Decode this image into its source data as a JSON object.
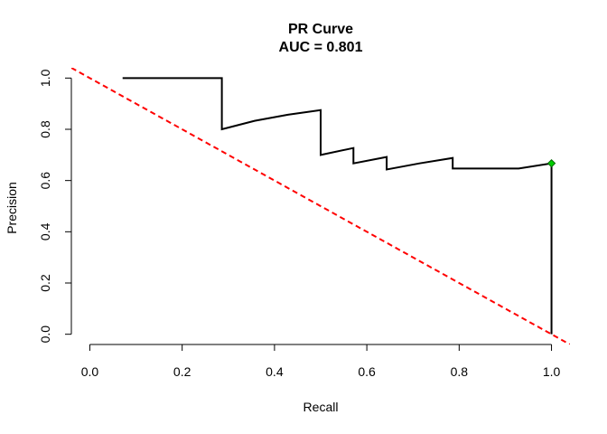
{
  "chart_data": {
    "type": "line",
    "title": "PR Curve",
    "subtitle": "AUC = 0.801",
    "xlabel": "Recall",
    "ylabel": "Precision",
    "xlim": [
      -0.04,
      1.04
    ],
    "ylim": [
      -0.04,
      1.04
    ],
    "x_ticks": [
      "0.0",
      "0.2",
      "0.4",
      "0.6",
      "0.8",
      "1.0"
    ],
    "y_ticks": [
      "0.0",
      "0.2",
      "0.4",
      "0.6",
      "0.8",
      "1.0"
    ],
    "grid": false,
    "series": [
      {
        "color": "#000000",
        "style": "solid",
        "x": [
          0.071,
          0.286,
          0.286,
          0.357,
          0.429,
          0.5,
          0.5,
          0.571,
          0.571,
          0.643,
          0.643,
          0.714,
          0.786,
          0.786,
          0.929,
          1.0,
          1.0
        ],
        "y": [
          1.0,
          1.0,
          0.8,
          0.833,
          0.857,
          0.875,
          0.7,
          0.727,
          0.667,
          0.692,
          0.643,
          0.667,
          0.688,
          0.647,
          0.647,
          0.667,
          0.0
        ]
      },
      {
        "color": "#ff0000",
        "style": "dashed",
        "x": [
          -0.04,
          1.04
        ],
        "y": [
          1.04,
          -0.04
        ]
      }
    ],
    "marker": {
      "x": 1.0,
      "y": 0.667,
      "color": "#00cc00",
      "shape": "diamond"
    }
  }
}
